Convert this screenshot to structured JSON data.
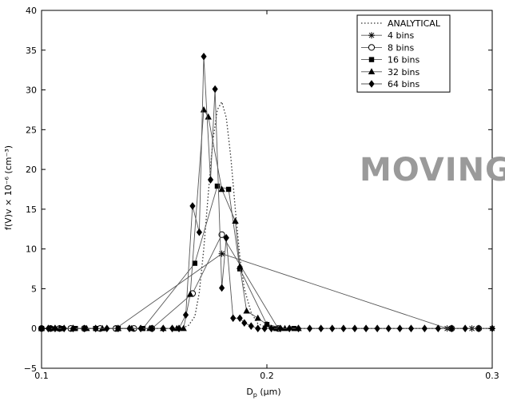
{
  "chart_data": {
    "type": "line",
    "ylabel": "f(V)v × 10⁻⁶ (cm⁻³)",
    "xlabel_main": "D",
    "xlabel_sub": "p",
    "xlabel_unit": " (µm)",
    "xlim": [
      0.1,
      0.3
    ],
    "ylim": [
      -5,
      40
    ],
    "xticks": [
      0.1,
      0.2,
      0.3
    ],
    "xtick_labels": [
      "0.1",
      "0.2",
      "0.3"
    ],
    "yticks": [
      -5,
      0,
      5,
      10,
      15,
      20,
      25,
      30,
      35,
      40
    ],
    "ytick_labels": [
      "−5",
      "0",
      "5",
      "10",
      "15",
      "20",
      "25",
      "30",
      "35",
      "40"
    ],
    "legend_position": "top-right",
    "series": [
      {
        "name": "ANALYTICAL",
        "style": "dotted",
        "marker": "none",
        "x": [
          0.1,
          0.16,
          0.165,
          0.168,
          0.17,
          0.172,
          0.174,
          0.176,
          0.178,
          0.18,
          0.182,
          0.184,
          0.186,
          0.188,
          0.19,
          0.193,
          0.196,
          0.2,
          0.21,
          0.3
        ],
        "y": [
          0,
          0,
          0.3,
          1.5,
          4.5,
          10,
          17,
          23.5,
          27.5,
          28.5,
          26.5,
          21.5,
          15,
          9,
          5,
          2,
          0.6,
          0.1,
          0,
          0
        ]
      },
      {
        "name": "4 bins",
        "style": "solid",
        "marker": "star",
        "x": [
          0.1,
          0.104,
          0.108,
          0.113,
          0.119,
          0.126,
          0.133,
          0.18,
          0.28,
          0.291,
          0.3
        ],
        "y": [
          0,
          0,
          0,
          0,
          0,
          0,
          0,
          9.4,
          0,
          0,
          0
        ]
      },
      {
        "name": "8 bins",
        "style": "solid",
        "marker": "circle",
        "x": [
          0.1,
          0.104,
          0.108,
          0.113,
          0.119,
          0.126,
          0.133,
          0.141,
          0.149,
          0.167,
          0.18,
          0.205,
          0.282,
          0.294
        ],
        "y": [
          0,
          0,
          0,
          0,
          0,
          0,
          0,
          0,
          0,
          4.4,
          11.8,
          0,
          0,
          0
        ]
      },
      {
        "name": "16 bins",
        "style": "solid",
        "marker": "square",
        "x": [
          0.1,
          0.104,
          0.109,
          0.115,
          0.124,
          0.134,
          0.145,
          0.168,
          0.178,
          0.183,
          0.188,
          0.2,
          0.204,
          0.212
        ],
        "y": [
          0,
          0,
          0,
          0,
          0,
          0,
          0,
          8.2,
          17.9,
          17.5,
          7.5,
          0.5,
          0,
          0
        ]
      },
      {
        "name": "32 bins",
        "style": "solid",
        "marker": "triangle",
        "x": [
          0.1,
          0.104,
          0.108,
          0.114,
          0.12,
          0.127,
          0.134,
          0.14,
          0.148,
          0.154,
          0.16,
          0.163,
          0.166,
          0.172,
          0.174,
          0.18,
          0.186,
          0.188,
          0.191,
          0.196,
          0.2,
          0.208,
          0.214
        ],
        "y": [
          0,
          0,
          0,
          0,
          0,
          0,
          0,
          0,
          0,
          0,
          0,
          0,
          4.3,
          27.5,
          26.6,
          17.5,
          13.5,
          7.8,
          2.2,
          1.3,
          0.5,
          0,
          0
        ]
      },
      {
        "name": "64 bins",
        "style": "solid",
        "marker": "diamond",
        "x": [
          0.1,
          0.103,
          0.106,
          0.11,
          0.114,
          0.119,
          0.124,
          0.129,
          0.134,
          0.139,
          0.144,
          0.149,
          0.154,
          0.158,
          0.161,
          0.164,
          0.167,
          0.17,
          0.172,
          0.175,
          0.177,
          0.18,
          0.182,
          0.185,
          0.188,
          0.19,
          0.193,
          0.196,
          0.199,
          0.202,
          0.206,
          0.21,
          0.214,
          0.219,
          0.224,
          0.229,
          0.234,
          0.239,
          0.244,
          0.249,
          0.254,
          0.259,
          0.264,
          0.27,
          0.276,
          0.282,
          0.288,
          0.294,
          0.3
        ],
        "y": [
          0,
          0,
          0,
          0,
          0,
          0,
          0,
          0,
          0,
          0,
          0,
          0,
          0,
          0,
          0,
          1.7,
          15.4,
          12.1,
          34.2,
          18.7,
          30.1,
          5.1,
          11.4,
          1.3,
          1.3,
          0.7,
          0.3,
          0,
          0,
          0,
          0,
          0,
          0,
          0,
          0,
          0,
          0,
          0,
          0,
          0,
          0,
          0,
          0,
          0,
          0,
          0,
          0,
          0,
          0
        ]
      }
    ]
  },
  "watermark": "MOVING"
}
